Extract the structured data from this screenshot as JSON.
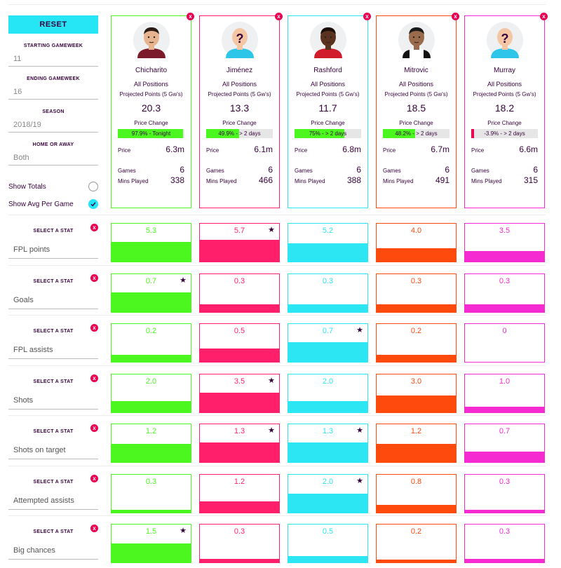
{
  "sidebar": {
    "reset_label": "RESET",
    "fields": [
      {
        "label": "STARTING GAMEWEEK",
        "value": "11"
      },
      {
        "label": "ENDING GAMEWEEK",
        "value": "16"
      },
      {
        "label": "SEASON",
        "value": "2018/19"
      },
      {
        "label": "HOME OR AWAY",
        "value": "Both"
      }
    ],
    "show_totals": {
      "label": "Show Totals",
      "checked": false
    },
    "show_avg": {
      "label": "Show Avg Per Game",
      "checked": true
    }
  },
  "labels": {
    "position": "All Positions",
    "projected": "Projected Points (5 Gw's)",
    "price_change": "Price Change",
    "price": "Price",
    "games": "Games",
    "mins": "Mins Played",
    "select_stat": "SELECT A STAT",
    "close": "x"
  },
  "players": [
    {
      "name": "Chicharito",
      "color": "#4cf71f",
      "projected": "20.3",
      "price_change_text": "97.9% - Tonight",
      "price_change_pct": 97.9,
      "price": "6.3m",
      "games": "6",
      "mins": "338",
      "avatar": "player-chicharito-icon"
    },
    {
      "name": "Jiménez",
      "color": "#ff1f6b",
      "projected": "13.3",
      "price_change_text": "49.9% - > 2 days",
      "price_change_pct": 49.9,
      "price": "6.1m",
      "games": "6",
      "mins": "466",
      "avatar": "unknown-player-icon"
    },
    {
      "name": "Rashford",
      "color": "#2de6f4",
      "projected": "11.7",
      "price_change_text": "75% - > 2 days",
      "price_change_pct": 75,
      "price": "6.8m",
      "games": "6",
      "mins": "388",
      "avatar": "player-rashford-icon"
    },
    {
      "name": "Mitrovic",
      "color": "#ff4a0e",
      "projected": "18.5",
      "price_change_text": "48.2% - > 2 days",
      "price_change_pct": 48.2,
      "price": "6.7m",
      "games": "6",
      "mins": "491",
      "avatar": "player-mitrovic-icon"
    },
    {
      "name": "Murray",
      "color": "#f52ad1",
      "projected": "18.2",
      "price_change_text": "-3.9% - > 2 days",
      "price_change_pct": -3.9,
      "price": "6.6m",
      "games": "6",
      "mins": "315",
      "avatar": "unknown-player-icon"
    }
  ],
  "stats": [
    {
      "name": "FPL points",
      "values": [
        "5.3",
        "5.7",
        "5.2",
        "4.0",
        "3.5"
      ],
      "fractions": [
        0.52,
        0.57,
        0.48,
        0.35,
        0.28
      ],
      "best": [
        1
      ]
    },
    {
      "name": "Goals",
      "values": [
        "0.7",
        "0.3",
        "0.3",
        "0.3",
        "0.3"
      ],
      "fractions": [
        0.52,
        0.2,
        0.2,
        0.2,
        0.2
      ],
      "best": [
        0
      ]
    },
    {
      "name": "FPL assists",
      "values": [
        "0.2",
        "0.5",
        "0.7",
        "0.2",
        "0"
      ],
      "fractions": [
        0.18,
        0.35,
        0.52,
        0.18,
        0
      ],
      "best": [
        2
      ]
    },
    {
      "name": "Shots",
      "values": [
        "2.0",
        "3.5",
        "2.0",
        "3.0",
        "1.0"
      ],
      "fractions": [
        0.3,
        0.52,
        0.3,
        0.45,
        0.15
      ],
      "best": [
        1
      ]
    },
    {
      "name": "Shots on target",
      "values": [
        "1.2",
        "1.3",
        "1.3",
        "1.2",
        "0.7"
      ],
      "fractions": [
        0.48,
        0.52,
        0.52,
        0.48,
        0.28
      ],
      "best": [
        1,
        2
      ]
    },
    {
      "name": "Attempted assists",
      "values": [
        "0.3",
        "1.2",
        "2.0",
        "0.8",
        "0.3"
      ],
      "fractions": [
        0.08,
        0.3,
        0.5,
        0.2,
        0.08
      ],
      "best": [
        2
      ]
    },
    {
      "name": "Big chances",
      "values": [
        "1.5",
        "0.3",
        "0.5",
        "0.2",
        "0.3"
      ],
      "fractions": [
        0.5,
        0.1,
        0.16,
        0.07,
        0.1
      ],
      "best": [
        0
      ]
    }
  ]
}
